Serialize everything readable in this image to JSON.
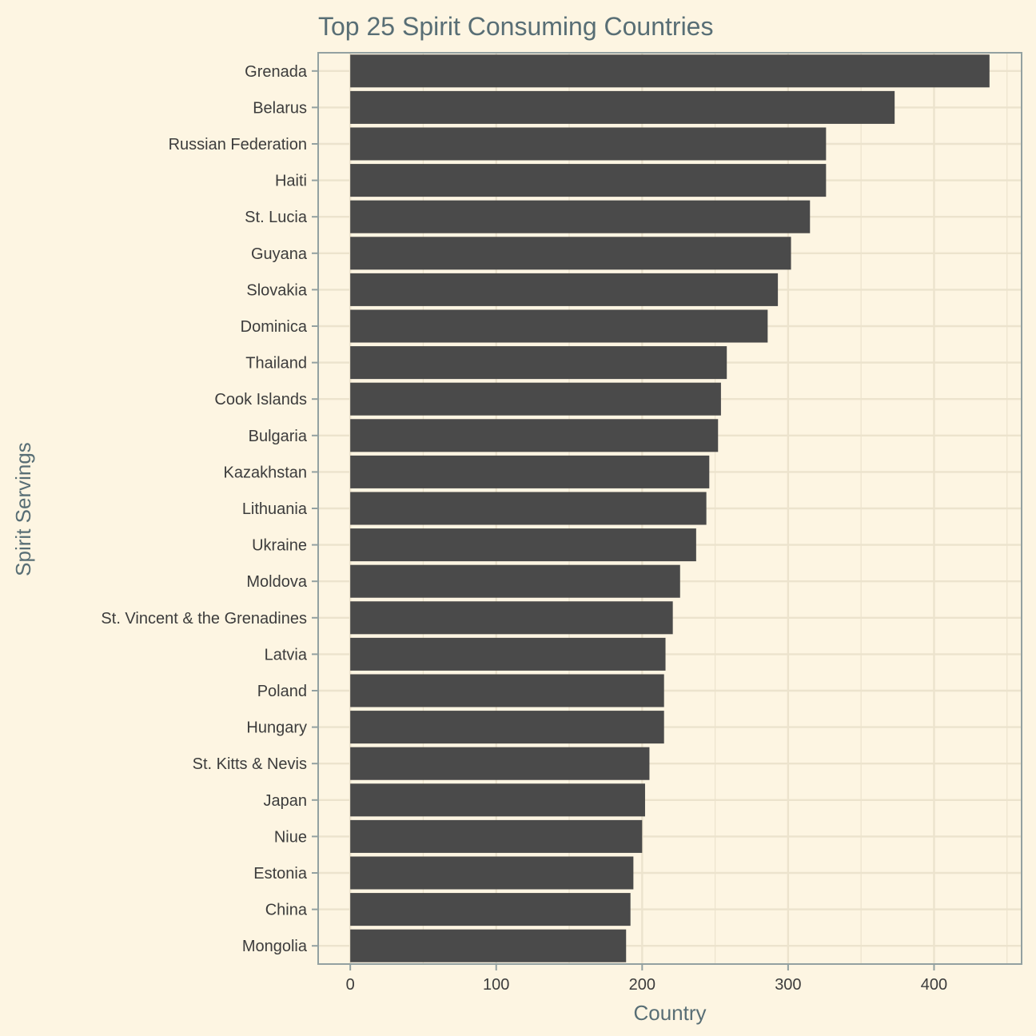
{
  "chart_data": {
    "type": "bar",
    "orientation": "horizontal",
    "title": "Top 25 Spirit Consuming Countries",
    "xlabel": "Country",
    "ylabel": "Spirit Servings",
    "xlim": [
      -22,
      460
    ],
    "xticks": [
      0,
      100,
      200,
      300,
      400
    ],
    "grid": true,
    "colors": {
      "background": "#fdf5e2",
      "bar": "#4a4a4a",
      "grid": "#ece3cd",
      "axis": "#93a1a1",
      "title": "#586e75"
    },
    "categories": [
      "Grenada",
      "Belarus",
      "Russian Federation",
      "Haiti",
      "St. Lucia",
      "Guyana",
      "Slovakia",
      "Dominica",
      "Thailand",
      "Cook Islands",
      "Bulgaria",
      "Kazakhstan",
      "Lithuania",
      "Ukraine",
      "Moldova",
      "St. Vincent & the Grenadines",
      "Latvia",
      "Poland",
      "Hungary",
      "St. Kitts & Nevis",
      "Japan",
      "Niue",
      "Estonia",
      "China",
      "Mongolia"
    ],
    "values": [
      438,
      373,
      326,
      326,
      315,
      302,
      293,
      286,
      258,
      254,
      252,
      246,
      244,
      237,
      226,
      221,
      216,
      215,
      215,
      205,
      202,
      200,
      194,
      192,
      189
    ]
  }
}
